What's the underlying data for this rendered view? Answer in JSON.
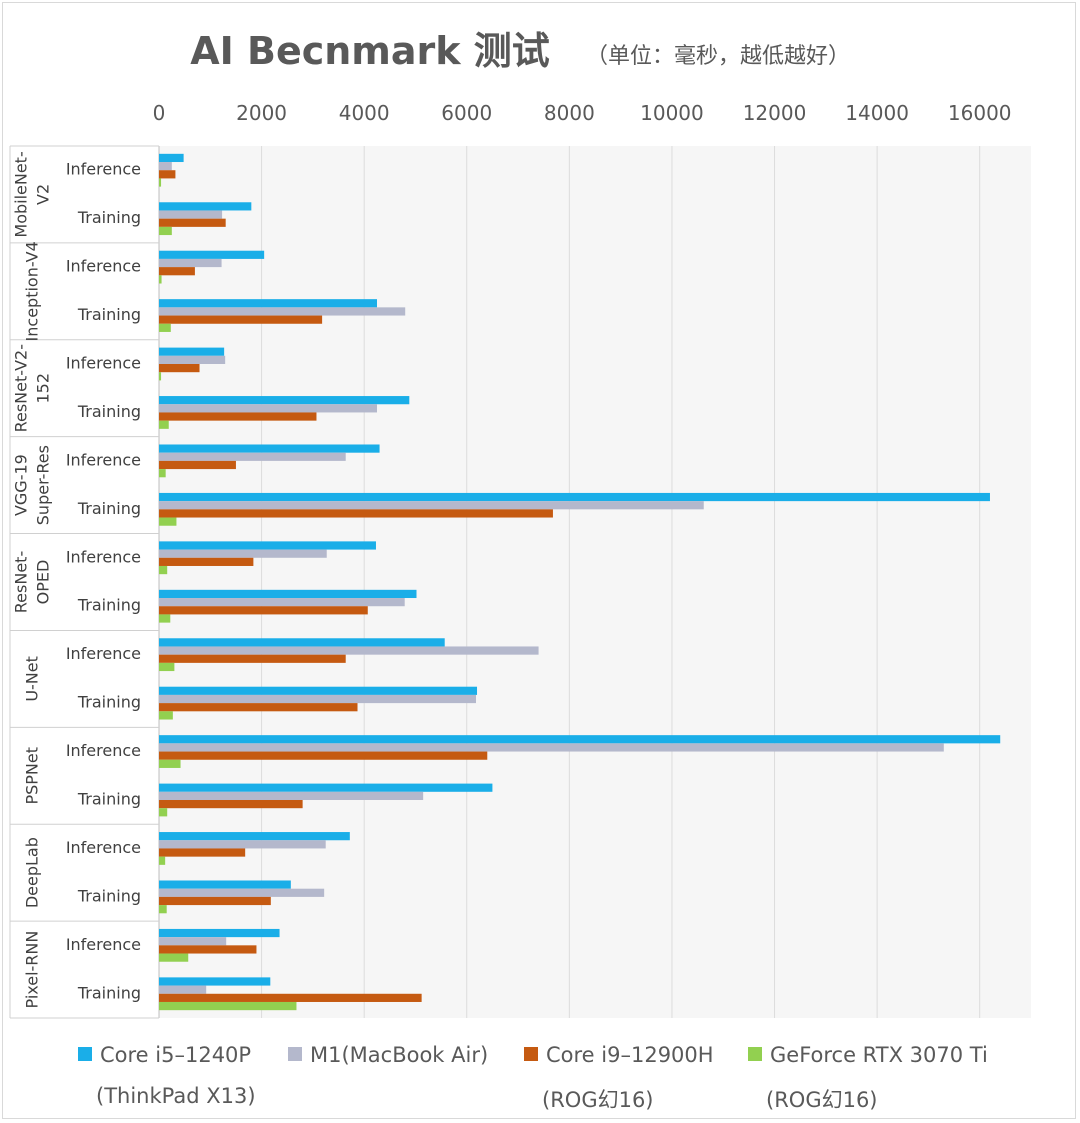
{
  "chart_data": {
    "type": "bar",
    "orientation": "horizontal",
    "title": "AI Becnmark 测试",
    "subtitle": "（单位：毫秒，越低越好）",
    "xlim": [
      0,
      17000
    ],
    "xticks": [
      0,
      2000,
      4000,
      6000,
      8000,
      10000,
      12000,
      14000,
      16000
    ],
    "grid": true,
    "legend_position": "bottom",
    "groups": [
      {
        "label": "MobileNet-V2",
        "label_lines": [
          "MobileNet-",
          "V2"
        ]
      },
      {
        "label": "Inception-V4",
        "label_lines": [
          "Inception-V4"
        ]
      },
      {
        "label": "ResNet-V2-152",
        "label_lines": [
          "ResNet-V2-",
          "152"
        ]
      },
      {
        "label": "VGG-19 Super-Res",
        "label_lines": [
          "VGG-19",
          "Super-Res"
        ]
      },
      {
        "label": "ResNet-OPED",
        "label_lines": [
          "ResNet-",
          "OPED"
        ]
      },
      {
        "label": "U-Net",
        "label_lines": [
          "U-Net"
        ]
      },
      {
        "label": "PSPNet",
        "label_lines": [
          "PSPNet"
        ]
      },
      {
        "label": "DeepLab",
        "label_lines": [
          "DeepLab"
        ]
      },
      {
        "label": "Pixel-RNN",
        "label_lines": [
          "Pixel-RNN"
        ]
      }
    ],
    "subcategories": [
      "Inference",
      "Training"
    ],
    "series": [
      {
        "name": "Core i5–1240P",
        "name_line2": "(ThinkPad X13)",
        "color": "#1aaee8",
        "values": [
          480,
          1800,
          2050,
          4250,
          1270,
          4880,
          4300,
          16200,
          4230,
          5020,
          5570,
          6200,
          16400,
          6500,
          3720,
          2570,
          2350,
          2170
        ]
      },
      {
        "name": "M1(MacBook Air)",
        "name_line2": "",
        "color": "#b4b8cc",
        "values": [
          250,
          1230,
          1220,
          4800,
          1290,
          4250,
          3640,
          10620,
          3270,
          4790,
          7400,
          6180,
          15300,
          5150,
          3250,
          3220,
          1310,
          920
        ]
      },
      {
        "name": "Core i9–12900H",
        "name_line2": "(ROG幻16)",
        "color": "#c55a11",
        "values": [
          320,
          1300,
          700,
          3180,
          790,
          3070,
          1500,
          7680,
          1840,
          4070,
          3640,
          3870,
          6400,
          2800,
          1680,
          2180,
          1900,
          5120
        ]
      },
      {
        "name": "GeForce RTX 3070 Ti",
        "name_line2": "(ROG幻16)",
        "color": "#92d050",
        "values": [
          40,
          250,
          50,
          230,
          40,
          190,
          130,
          340,
          160,
          220,
          300,
          270,
          420,
          160,
          120,
          150,
          570,
          2680
        ]
      }
    ]
  }
}
